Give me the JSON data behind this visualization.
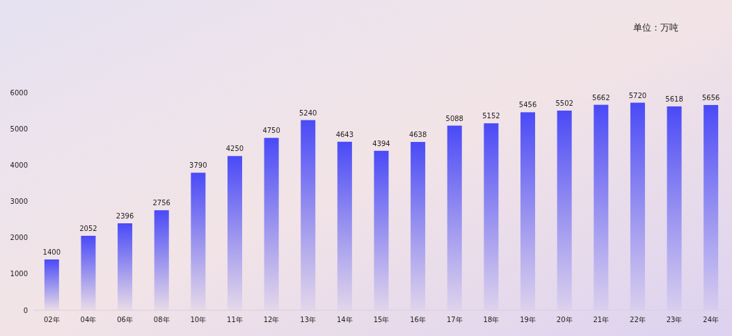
{
  "chart_data": {
    "type": "bar",
    "categories": [
      "02年",
      "04年",
      "06年",
      "08年",
      "10年",
      "11年",
      "12年",
      "13年",
      "14年",
      "15年",
      "16年",
      "17年",
      "18年",
      "19年",
      "20年",
      "21年",
      "22年",
      "23年",
      "24年"
    ],
    "values": [
      1400,
      2052,
      2396,
      2756,
      3790,
      4250,
      4750,
      5240,
      4643,
      4394,
      4638,
      5088,
      5152,
      5456,
      5502,
      5662,
      5720,
      5618,
      5656
    ],
    "color": "#4a4af6",
    "ylim": [
      0,
      6000
    ],
    "yticks": [
      0,
      1000,
      2000,
      3000,
      4000,
      5000,
      6000
    ],
    "data_labels": true,
    "annotations": [
      "单位：万吨"
    ]
  }
}
